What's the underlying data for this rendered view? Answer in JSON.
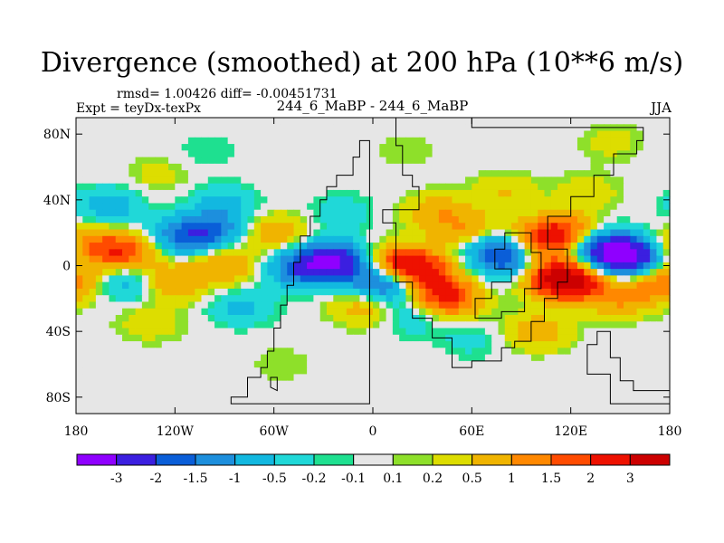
{
  "chart_data": {
    "type": "heatmap",
    "title": "Divergence (smoothed) at 200 hPa (10**6 m/s)",
    "stats_label": "rmsd= 1.00426 diff= -0.00451731",
    "left_label": "Expt = teyDx-texPx",
    "center_label": "244_6_MaBP - 244_6_MaBP",
    "right_label": "JJA",
    "units": "10**6 m/s",
    "xlim": [
      -180,
      180
    ],
    "ylim": [
      -90,
      90
    ],
    "x_ticks": [
      {
        "value": -180,
        "label": "180"
      },
      {
        "value": -120,
        "label": "120W"
      },
      {
        "value": -60,
        "label": "60W"
      },
      {
        "value": 0,
        "label": "0"
      },
      {
        "value": 60,
        "label": "60E"
      },
      {
        "value": 120,
        "label": "120E"
      },
      {
        "value": 180,
        "label": "180"
      }
    ],
    "y_ticks": [
      {
        "value": 80,
        "label": "80N"
      },
      {
        "value": 40,
        "label": "40N"
      },
      {
        "value": 0,
        "label": "0"
      },
      {
        "value": -40,
        "label": "40S"
      },
      {
        "value": -80,
        "label": "80S"
      }
    ],
    "levels": [
      "-3",
      "-2",
      "-1.5",
      "-1",
      "-0.5",
      "-0.2",
      "-0.1",
      "0.1",
      "0.2",
      "0.5",
      "1",
      "1.5",
      "2",
      "3"
    ],
    "colors": [
      "#8f00ff",
      "#3b1fe0",
      "#0a5ed8",
      "#1d8fdd",
      "#12b8e0",
      "#20d8d8",
      "#1ee090",
      "#e6e6e6",
      "#8ee02a",
      "#dddd00",
      "#f0b400",
      "#ff8800",
      "#ff4b00",
      "#ee1100",
      "#cc0000"
    ],
    "field_features": [
      {
        "lon": -150,
        "lat": 8,
        "value": 1.6
      },
      {
        "lon": -170,
        "lat": 12,
        "value": 1.2
      },
      {
        "lon": -115,
        "lat": 18,
        "value": -1.6
      },
      {
        "lon": -95,
        "lat": 22,
        "value": -1.2
      },
      {
        "lon": -60,
        "lat": 20,
        "value": 0.9
      },
      {
        "lon": -25,
        "lat": 2,
        "value": -3.0
      },
      {
        "lon": -45,
        "lat": -2,
        "value": -1.4
      },
      {
        "lon": -90,
        "lat": 0,
        "value": 1.0
      },
      {
        "lon": -150,
        "lat": -10,
        "value": -0.8
      },
      {
        "lon": -120,
        "lat": -10,
        "value": 1.0
      },
      {
        "lon": -160,
        "lat": 36,
        "value": -0.8
      },
      {
        "lon": -90,
        "lat": 38,
        "value": -0.6
      },
      {
        "lon": -80,
        "lat": -25,
        "value": -0.6
      },
      {
        "lon": -135,
        "lat": -35,
        "value": 0.4
      },
      {
        "lon": -55,
        "lat": -60,
        "value": 0.2
      },
      {
        "lon": -5,
        "lat": -25,
        "value": 0.8
      },
      {
        "lon": -20,
        "lat": 32,
        "value": -0.4
      },
      {
        "lon": 20,
        "lat": 0,
        "value": 3.0
      },
      {
        "lon": 35,
        "lat": -8,
        "value": 1.2
      },
      {
        "lon": 45,
        "lat": -20,
        "value": 2.0
      },
      {
        "lon": 40,
        "lat": 32,
        "value": 0.9
      },
      {
        "lon": 60,
        "lat": 20,
        "value": 1.0
      },
      {
        "lon": 75,
        "lat": 10,
        "value": -1.8
      },
      {
        "lon": 85,
        "lat": 0,
        "value": -1.2
      },
      {
        "lon": 8,
        "lat": -10,
        "value": -2.2
      },
      {
        "lon": 25,
        "lat": -30,
        "value": -0.6
      },
      {
        "lon": 100,
        "lat": 15,
        "value": 1.4
      },
      {
        "lon": 115,
        "lat": 20,
        "value": 1.8
      },
      {
        "lon": 120,
        "lat": -10,
        "value": 3.0
      },
      {
        "lon": 105,
        "lat": -5,
        "value": 1.6
      },
      {
        "lon": 155,
        "lat": 5,
        "value": -3.0
      },
      {
        "lon": 140,
        "lat": 10,
        "value": -2.0
      },
      {
        "lon": 150,
        "lat": -20,
        "value": 1.0
      },
      {
        "lon": 175,
        "lat": -10,
        "value": 1.4
      },
      {
        "lon": 100,
        "lat": -40,
        "value": 0.8
      },
      {
        "lon": 60,
        "lat": -45,
        "value": -0.3
      },
      {
        "lon": 80,
        "lat": 45,
        "value": 0.5
      },
      {
        "lon": 130,
        "lat": 45,
        "value": 0.4
      },
      {
        "lon": -130,
        "lat": 55,
        "value": 0.3
      },
      {
        "lon": 20,
        "lat": 70,
        "value": 0.2
      },
      {
        "lon": 145,
        "lat": 75,
        "value": 0.3
      },
      {
        "lon": -100,
        "lat": 70,
        "value": -0.2
      }
    ]
  }
}
